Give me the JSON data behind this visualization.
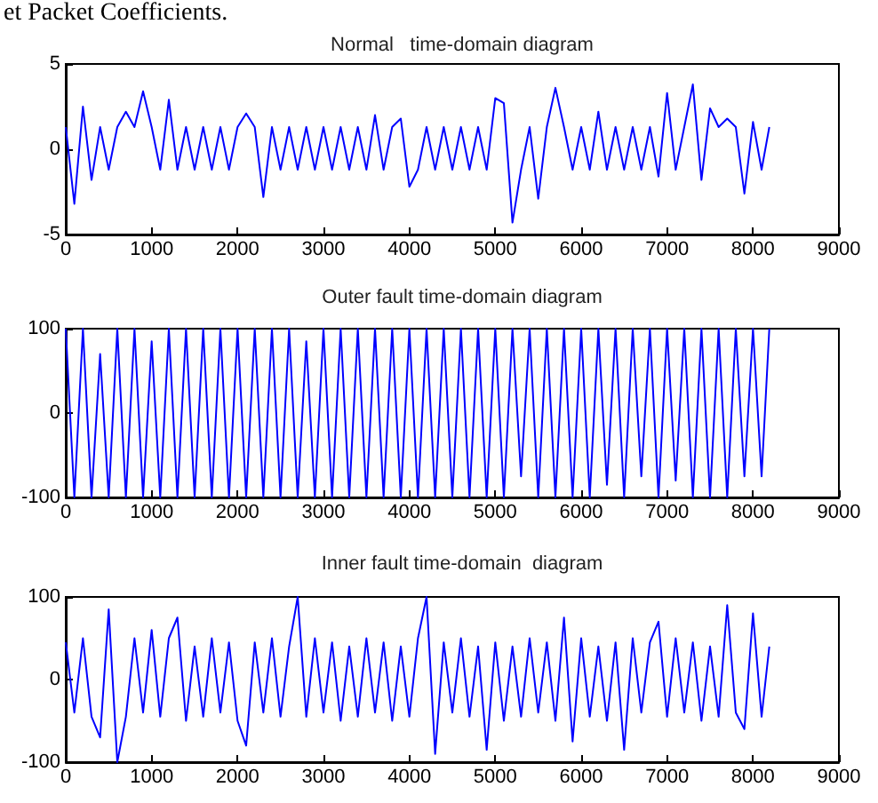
{
  "chart_data": [
    {
      "type": "line",
      "title": "Normal   time-domain diagram",
      "annotations": [
        "et Packet Coefficients."
      ],
      "color": "#0000ff",
      "grid": false,
      "x": [
        0,
        100,
        200,
        300,
        400,
        500,
        600,
        700,
        800,
        900,
        1000,
        1100,
        1200,
        1300,
        1400,
        1500,
        1600,
        1700,
        1800,
        1900,
        2000,
        2100,
        2200,
        2300,
        2400,
        2500,
        2600,
        2700,
        2800,
        2900,
        3000,
        3100,
        3200,
        3300,
        3400,
        3500,
        3600,
        3700,
        3800,
        3900,
        4000,
        4100,
        4200,
        4300,
        4400,
        4500,
        4600,
        4700,
        4800,
        4900,
        5000,
        5100,
        5200,
        5300,
        5400,
        5500,
        5600,
        5700,
        5800,
        5900,
        6000,
        6100,
        6200,
        6300,
        6400,
        6500,
        6600,
        6700,
        6800,
        6900,
        7000,
        7100,
        7200,
        7300,
        7400,
        7500,
        7600,
        7700,
        7800,
        7900,
        8000,
        8100,
        8190
      ],
      "values": [
        1.3,
        -3.2,
        2.5,
        -1.8,
        1.3,
        -1.2,
        1.3,
        2.2,
        1.3,
        3.4,
        1.3,
        -1.2,
        2.9,
        -1.2,
        1.3,
        -1.2,
        1.3,
        -1.2,
        1.3,
        -1.2,
        1.3,
        2.1,
        1.3,
        -2.8,
        1.3,
        -1.2,
        1.3,
        -1.2,
        1.3,
        -1.2,
        1.3,
        -1.2,
        1.3,
        -1.2,
        1.3,
        -1.2,
        2.0,
        -1.2,
        1.3,
        1.8,
        -2.2,
        -1.2,
        1.3,
        -1.2,
        1.3,
        -1.2,
        1.3,
        -1.2,
        1.3,
        -1.2,
        3.0,
        2.7,
        -4.3,
        -1.2,
        1.3,
        -2.9,
        1.3,
        3.6,
        1.3,
        -1.2,
        1.3,
        -1.2,
        2.2,
        -1.2,
        1.3,
        -1.2,
        1.3,
        -1.2,
        1.3,
        -1.6,
        3.3,
        -1.2,
        1.3,
        3.8,
        -1.8,
        2.4,
        1.3,
        1.8,
        1.3,
        -2.6,
        1.6,
        -1.2,
        1.3
      ],
      "xlim": [
        0,
        9000
      ],
      "xticks": [
        0,
        1000,
        2000,
        3000,
        4000,
        5000,
        6000,
        7000,
        8000,
        9000
      ],
      "ylim": [
        -5,
        5
      ],
      "yticks": [
        -5,
        0,
        5
      ]
    },
    {
      "type": "line",
      "title": "Outer fault time-domain diagram",
      "color": "#0000ff",
      "grid": false,
      "x": [
        0,
        100,
        200,
        300,
        400,
        500,
        600,
        700,
        800,
        900,
        1000,
        1100,
        1200,
        1300,
        1400,
        1500,
        1600,
        1700,
        1800,
        1900,
        2000,
        2100,
        2200,
        2300,
        2400,
        2500,
        2600,
        2700,
        2800,
        2900,
        3000,
        3100,
        3200,
        3300,
        3400,
        3500,
        3600,
        3700,
        3800,
        3900,
        4000,
        4100,
        4200,
        4300,
        4400,
        4500,
        4600,
        4700,
        4800,
        4900,
        5000,
        5100,
        5200,
        5300,
        5400,
        5500,
        5600,
        5700,
        5800,
        5900,
        6000,
        6100,
        6200,
        6300,
        6400,
        6500,
        6600,
        6700,
        6800,
        6900,
        7000,
        7100,
        7200,
        7300,
        7400,
        7500,
        7600,
        7700,
        7800,
        7900,
        8000,
        8100,
        8190
      ],
      "values": [
        100,
        -100,
        100,
        -100,
        70,
        -100,
        100,
        -100,
        100,
        -100,
        85,
        -100,
        100,
        -100,
        100,
        -100,
        100,
        -100,
        100,
        -100,
        100,
        -100,
        100,
        -100,
        100,
        -100,
        100,
        -100,
        85,
        -100,
        100,
        -100,
        100,
        -100,
        100,
        -100,
        100,
        -100,
        100,
        -100,
        100,
        -100,
        100,
        -100,
        100,
        -100,
        100,
        -100,
        100,
        -100,
        100,
        -100,
        100,
        -75,
        100,
        -100,
        100,
        -100,
        100,
        -100,
        100,
        -100,
        100,
        -85,
        100,
        -100,
        100,
        -75,
        100,
        -100,
        100,
        -80,
        100,
        -100,
        100,
        -100,
        100,
        -100,
        100,
        -75,
        100,
        -75,
        100
      ],
      "xlim": [
        0,
        9000
      ],
      "xticks": [
        0,
        1000,
        2000,
        3000,
        4000,
        5000,
        6000,
        7000,
        8000,
        9000
      ],
      "ylim": [
        -100,
        100
      ],
      "yticks": [
        -100,
        0,
        100
      ]
    },
    {
      "type": "line",
      "title": "Inner fault time-domain  diagram",
      "color": "#0000ff",
      "grid": false,
      "x": [
        0,
        100,
        200,
        300,
        400,
        500,
        600,
        700,
        800,
        900,
        1000,
        1100,
        1200,
        1300,
        1400,
        1500,
        1600,
        1700,
        1800,
        1900,
        2000,
        2100,
        2200,
        2300,
        2400,
        2500,
        2600,
        2700,
        2800,
        2900,
        3000,
        3100,
        3200,
        3300,
        3400,
        3500,
        3600,
        3700,
        3800,
        3900,
        4000,
        4100,
        4200,
        4300,
        4400,
        4500,
        4600,
        4700,
        4800,
        4900,
        5000,
        5100,
        5200,
        5300,
        5400,
        5500,
        5600,
        5700,
        5800,
        5900,
        6000,
        6100,
        6200,
        6300,
        6400,
        6500,
        6600,
        6700,
        6800,
        6900,
        7000,
        7100,
        7200,
        7300,
        7400,
        7500,
        7600,
        7700,
        7800,
        7900,
        8000,
        8100,
        8190
      ],
      "values": [
        45,
        -40,
        50,
        -45,
        -70,
        85,
        -100,
        -45,
        50,
        -40,
        60,
        -45,
        50,
        75,
        -50,
        40,
        -45,
        50,
        -40,
        45,
        -50,
        -80,
        45,
        -40,
        50,
        -45,
        40,
        100,
        -45,
        50,
        -40,
        45,
        -50,
        40,
        -45,
        50,
        -40,
        45,
        -50,
        40,
        -45,
        50,
        100,
        -90,
        45,
        -40,
        50,
        -45,
        40,
        -85,
        45,
        -50,
        40,
        -45,
        50,
        -40,
        45,
        -50,
        75,
        -75,
        50,
        -45,
        40,
        -50,
        45,
        -85,
        50,
        -40,
        45,
        70,
        -45,
        50,
        -40,
        45,
        -50,
        40,
        -45,
        90,
        -40,
        -60,
        80,
        -45,
        40
      ],
      "xlim": [
        0,
        9000
      ],
      "xticks": [
        0,
        1000,
        2000,
        3000,
        4000,
        5000,
        6000,
        7000,
        8000,
        9000
      ],
      "ylim": [
        -100,
        100
      ],
      "yticks": [
        -100,
        0,
        100
      ]
    }
  ]
}
